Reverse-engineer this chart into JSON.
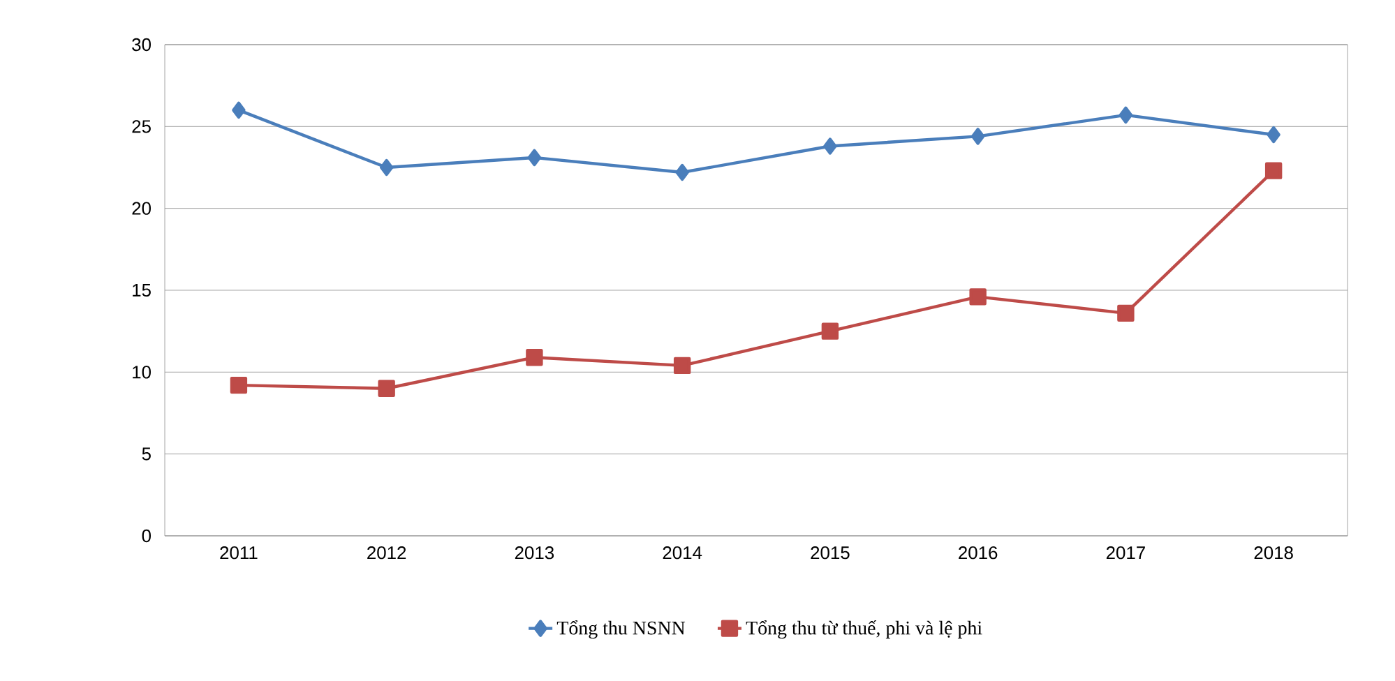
{
  "chart_data": {
    "type": "line",
    "categories": [
      "2011",
      "2012",
      "2013",
      "2014",
      "2015",
      "2016",
      "2017",
      "2018"
    ],
    "series": [
      {
        "name": "Tổng thu NSNN",
        "color": "#4a7ebb",
        "marker": "diamond",
        "values": [
          26.0,
          22.5,
          23.1,
          22.2,
          23.8,
          24.4,
          25.7,
          24.5
        ]
      },
      {
        "name": "Tổng thu từ thuế, phi và lệ phi",
        "color": "#be4b48",
        "marker": "square",
        "values": [
          9.2,
          9.0,
          10.9,
          10.4,
          12.5,
          14.6,
          13.6,
          22.3
        ]
      }
    ],
    "ylim": [
      0,
      30
    ],
    "yticks": [
      0,
      5,
      10,
      15,
      20,
      25,
      30
    ],
    "grid": "y",
    "legend": "bottom"
  }
}
